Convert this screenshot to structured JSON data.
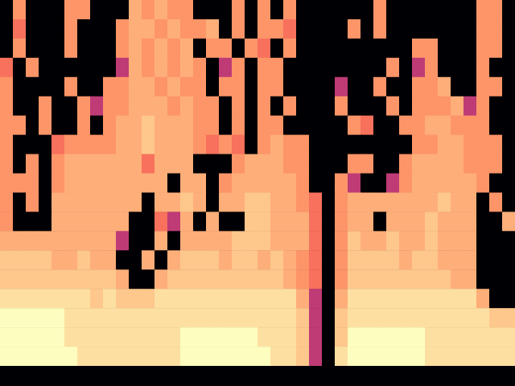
{
  "chart_data": {
    "type": "heatmap",
    "tick_labels": false,
    "cells": [
      [
        -80,
        -20,
        -80,
        -80,
        -80,
        -20,
        -20,
        -80,
        -80,
        -80,
        -16,
        -20,
        -16,
        -20,
        -20,
        -80,
        -80,
        -80,
        -20,
        -80,
        -20,
        -80,
        -20,
        -80,
        -80,
        -80,
        -80,
        -80,
        -80,
        -20,
        -80,
        -80,
        -80,
        -80,
        -80,
        -80,
        -80,
        -20,
        -20,
        -80
      ],
      [
        -80,
        -26,
        -80,
        -80,
        -80,
        -20,
        -80,
        -80,
        -80,
        -20,
        -16,
        -16,
        -20,
        -16,
        -20,
        -20,
        -16,
        -80,
        -20,
        -80,
        -20,
        -20,
        -26,
        -80,
        -80,
        -80,
        -80,
        -20,
        -80,
        -20,
        -80,
        -80,
        -80,
        -80,
        -80,
        -80,
        -80,
        -20,
        -20,
        -80
      ],
      [
        -80,
        -20,
        -80,
        -80,
        -80,
        -20,
        -80,
        -80,
        -80,
        -20,
        -16,
        -20,
        -16,
        -20,
        -16,
        -80,
        -20,
        -20,
        -80,
        -20,
        -26,
        -80,
        -20,
        -80,
        -80,
        -80,
        -80,
        -80,
        -80,
        -80,
        -80,
        -80,
        -20,
        -20,
        -80,
        -80,
        -80,
        -20,
        -20,
        -80
      ],
      [
        -26,
        -80,
        -20,
        -80,
        -80,
        -80,
        -80,
        -80,
        -80,
        -40,
        -16,
        -20,
        -16,
        -20,
        -16,
        -20,
        -80,
        -40,
        -20,
        -80,
        -20,
        -20,
        -80,
        -80,
        -80,
        -80,
        -80,
        -80,
        -80,
        -80,
        -20,
        -80,
        -40,
        -20,
        -80,
        -80,
        -80,
        -20,
        -80,
        -80
      ],
      [
        -20,
        -80,
        -80,
        -80,
        -80,
        -20,
        -80,
        -80,
        -20,
        -20,
        -16,
        -16,
        -20,
        -16,
        -20,
        -20,
        -80,
        -20,
        -20,
        -80,
        -20,
        -20,
        -80,
        -80,
        -80,
        -80,
        -40,
        -80,
        -80,
        -20,
        -80,
        -80,
        -20,
        -20,
        -16,
        -80,
        -80,
        -20,
        -20,
        -80
      ],
      [
        -20,
        -80,
        -80,
        -20,
        -80,
        -80,
        -20,
        -40,
        -20,
        -20,
        -16,
        -16,
        -16,
        -20,
        -16,
        -20,
        -20,
        -80,
        -20,
        -80,
        -20,
        -80,
        -20,
        -80,
        -80,
        -80,
        -20,
        -80,
        -80,
        -80,
        -20,
        -80,
        -20,
        -20,
        -20,
        -16,
        -40,
        -20,
        -80,
        -80
      ],
      [
        -20,
        -20,
        -80,
        -20,
        -80,
        -80,
        -20,
        -80,
        -20,
        -16,
        -16,
        -12,
        -16,
        -16,
        -16,
        -20,
        -20,
        -80,
        -20,
        -80,
        -20,
        -20,
        -80,
        -80,
        -80,
        -80,
        -80,
        -20,
        -26,
        -80,
        -80,
        -20,
        -20,
        -16,
        -16,
        -20,
        -20,
        -20,
        -80,
        -80
      ],
      [
        -20,
        -80,
        -80,
        -80,
        -26,
        -20,
        -20,
        -20,
        -20,
        -16,
        -16,
        -12,
        -16,
        -16,
        -16,
        -20,
        -26,
        -20,
        -26,
        -80,
        -20,
        -16,
        -20,
        -20,
        -80,
        -80,
        -80,
        -80,
        -80,
        -80,
        -80,
        -80,
        -20,
        -20,
        -16,
        -16,
        -20,
        -20,
        -20,
        -80
      ],
      [
        -20,
        -80,
        -20,
        -80,
        -20,
        -16,
        -16,
        -16,
        -16,
        -16,
        -16,
        -26,
        -16,
        -16,
        -16,
        -80,
        -80,
        -80,
        -20,
        -16,
        -16,
        -16,
        -20,
        -20,
        -80,
        -80,
        -80,
        -20,
        -20,
        -80,
        -80,
        -20,
        -16,
        -16,
        -16,
        -16,
        -20,
        -20,
        -20,
        -80
      ],
      [
        -20,
        -20,
        -20,
        -80,
        -20,
        -16,
        -16,
        -16,
        -16,
        -16,
        -16,
        -16,
        -16,
        -80,
        -16,
        -16,
        -80,
        -20,
        -16,
        -16,
        -16,
        -16,
        -16,
        -20,
        -80,
        -80,
        -20,
        -40,
        -80,
        -80,
        -40,
        -20,
        -16,
        -16,
        -16,
        -16,
        -16,
        -20,
        -80,
        -80
      ],
      [
        -20,
        -80,
        -20,
        -80,
        -16,
        -16,
        -16,
        -16,
        -16,
        -16,
        -16,
        -80,
        -16,
        -16,
        -12,
        -16,
        -80,
        -16,
        -16,
        -12,
        -12,
        -16,
        -16,
        -20,
        -26,
        -80,
        -20,
        -16,
        -16,
        -16,
        -16,
        -16,
        -16,
        -16,
        -12,
        -16,
        -16,
        -80,
        -20,
        -80
      ],
      [
        -20,
        -80,
        -80,
        -80,
        -16,
        -16,
        -16,
        -16,
        -16,
        -16,
        -80,
        -80,
        -26,
        -40,
        -16,
        -80,
        -16,
        -80,
        -80,
        -12,
        -12,
        -16,
        -16,
        -16,
        -26,
        -80,
        -20,
        -16,
        -16,
        -80,
        -16,
        -16,
        -16,
        -12,
        -16,
        -16,
        -16,
        -80,
        -80,
        -16
      ],
      [
        -16,
        -16,
        -16,
        -16,
        -16,
        -16,
        -16,
        -16,
        -16,
        -40,
        -80,
        -80,
        -16,
        -80,
        -16,
        -16,
        -16,
        -16,
        -12,
        -12,
        -12,
        -16,
        -16,
        -16,
        -26,
        -80,
        -20,
        -12,
        -16,
        -16,
        -12,
        -16,
        -16,
        -12,
        -16,
        -16,
        -16,
        -80,
        -80,
        -80
      ],
      [
        -12,
        -12,
        -12,
        -12,
        -16,
        -16,
        -12,
        -16,
        -16,
        -80,
        -80,
        -16,
        -80,
        -16,
        -12,
        -12,
        -12,
        -16,
        -12,
        -12,
        -16,
        -12,
        -16,
        -20,
        -26,
        -80,
        -20,
        -12,
        -12,
        -12,
        -12,
        -16,
        -12,
        -12,
        -16,
        -16,
        -16,
        -80,
        -80,
        -80
      ],
      [
        -12,
        -12,
        -12,
        -12,
        -12,
        -12,
        -12,
        -12,
        -12,
        -16,
        -80,
        -80,
        -16,
        -12,
        -12,
        -12,
        -12,
        -12,
        -12,
        -12,
        -12,
        -12,
        -16,
        -20,
        -26,
        -80,
        -20,
        -12,
        -12,
        -12,
        -12,
        -12,
        -12,
        -12,
        -12,
        -16,
        -16,
        -80,
        -80,
        -80
      ],
      [
        -8,
        -8,
        -8,
        -8,
        -8,
        -8,
        -8,
        -12,
        -8,
        -12,
        -12,
        -12,
        -8,
        -8,
        -8,
        -8,
        -8,
        -8,
        -8,
        -8,
        -8,
        -8,
        -8,
        -16,
        -40,
        -80,
        -16,
        -8,
        -8,
        -8,
        -8,
        -8,
        -8,
        -8,
        -8,
        -8,
        -8,
        -16,
        -80,
        -80
      ],
      [
        -3,
        -3,
        -3,
        -3,
        -3,
        -8,
        -8,
        -8,
        -8,
        -8,
        -8,
        -8,
        -8,
        -8,
        -8,
        -8,
        -8,
        -8,
        -8,
        -8,
        -8,
        -8,
        -8,
        -12,
        -40,
        -80,
        -12,
        -8,
        -8,
        -8,
        -8,
        -8,
        -8,
        -8,
        -8,
        -8,
        -8,
        -8,
        -12,
        -12
      ],
      [
        -3,
        -3,
        -3,
        -3,
        -3,
        -8,
        -8,
        -8,
        -8,
        -8,
        -8,
        -8,
        -8,
        -8,
        -3,
        -3,
        -3,
        -3,
        -3,
        -3,
        -8,
        -8,
        -8,
        -12,
        -40,
        -80,
        -12,
        -3,
        -3,
        -3,
        -3,
        -3,
        -3,
        -8,
        -8,
        -8,
        -8,
        -8,
        -8,
        -8
      ],
      [
        -3,
        -3,
        -3,
        -3,
        -3,
        -3,
        -8,
        -8,
        -8,
        -8,
        -8,
        -8,
        -8,
        -8,
        -3,
        -3,
        -3,
        -3,
        -3,
        -3,
        -3,
        -8,
        -8,
        -12,
        -40,
        -80,
        -8,
        -3,
        -3,
        -3,
        -3,
        -3,
        -3,
        -8,
        -8,
        -8,
        -8,
        -8,
        -8,
        -8
      ]
    ]
  }
}
